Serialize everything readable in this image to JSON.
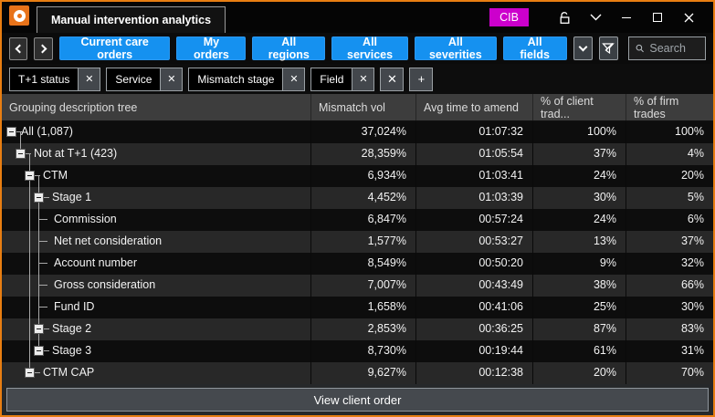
{
  "window": {
    "tab_title": "Manual intervention analytics",
    "badge": "CIB"
  },
  "toolbar": {
    "filter_buttons": [
      "Current care orders",
      "My orders",
      "All regions",
      "All services",
      "All severities",
      "All fields"
    ],
    "search_placeholder": "Search"
  },
  "filter_chips": [
    "T+1 status",
    "Service",
    "Mismatch stage",
    "Field"
  ],
  "chip_remove_glyph": "✕",
  "chip_add_glyph": "+",
  "table": {
    "columns": [
      "Grouping description tree",
      "Mismatch vol",
      "Avg time to amend",
      "% of client trad...",
      "% of firm trades"
    ],
    "rows": [
      {
        "label": "All (1,087)",
        "level": 0,
        "expander": true,
        "values": [
          "37,024%",
          "01:07:32",
          "100%",
          "100%"
        ]
      },
      {
        "label": "Not at T+1 (423)",
        "level": 1,
        "expander": true,
        "values": [
          "28,359%",
          "01:05:54",
          "37%",
          "4%"
        ]
      },
      {
        "label": "CTM",
        "level": 2,
        "expander": true,
        "values": [
          "6,934%",
          "01:03:41",
          "24%",
          "20%"
        ]
      },
      {
        "label": "Stage 1",
        "level": 3,
        "expander": true,
        "values": [
          "4,452%",
          "01:03:39",
          "30%",
          "5%"
        ]
      },
      {
        "label": "Commission",
        "level": 3,
        "expander": false,
        "values": [
          "6,847%",
          "00:57:24",
          "24%",
          "6%"
        ]
      },
      {
        "label": "Net net consideration",
        "level": 3,
        "expander": false,
        "values": [
          "1,577%",
          "00:53:27",
          "13%",
          "37%"
        ]
      },
      {
        "label": "Account number",
        "level": 3,
        "expander": false,
        "values": [
          "8,549%",
          "00:50:20",
          "9%",
          "32%"
        ]
      },
      {
        "label": "Gross consideration",
        "level": 3,
        "expander": false,
        "values": [
          "7,007%",
          "00:43:49",
          "38%",
          "66%"
        ]
      },
      {
        "label": "Fund ID",
        "level": 3,
        "expander": false,
        "values": [
          "1,658%",
          "00:41:06",
          "25%",
          "30%"
        ]
      },
      {
        "label": "Stage 2",
        "level": 3,
        "expander": true,
        "values": [
          "2,853%",
          "00:36:25",
          "87%",
          "83%"
        ]
      },
      {
        "label": "Stage 3",
        "level": 3,
        "expander": true,
        "values": [
          "8,730%",
          "00:19:44",
          "61%",
          "31%"
        ]
      },
      {
        "label": "CTM CAP",
        "level": 2,
        "expander": true,
        "values": [
          "9,627%",
          "00:12:38",
          "20%",
          "70%"
        ]
      }
    ]
  },
  "footer": {
    "view_client_order_label": "View client order"
  },
  "icons": {
    "app_logo": "orange-donut",
    "titlebar": [
      "unlock-icon",
      "chevron-down-icon",
      "minimize-icon",
      "maximize-icon",
      "close-icon"
    ],
    "toolbar": [
      "back-icon",
      "forward-icon",
      "chevron-down-icon",
      "clear-filter-icon",
      "search-icon"
    ]
  },
  "colors": {
    "window_border": "#e87e12",
    "accent_blue": "#1591f0",
    "badge_magenta": "#cc00cc",
    "row_dark": "#0d0d0d",
    "row_alt": "#282828",
    "header_bg": "#3d3d3d"
  }
}
